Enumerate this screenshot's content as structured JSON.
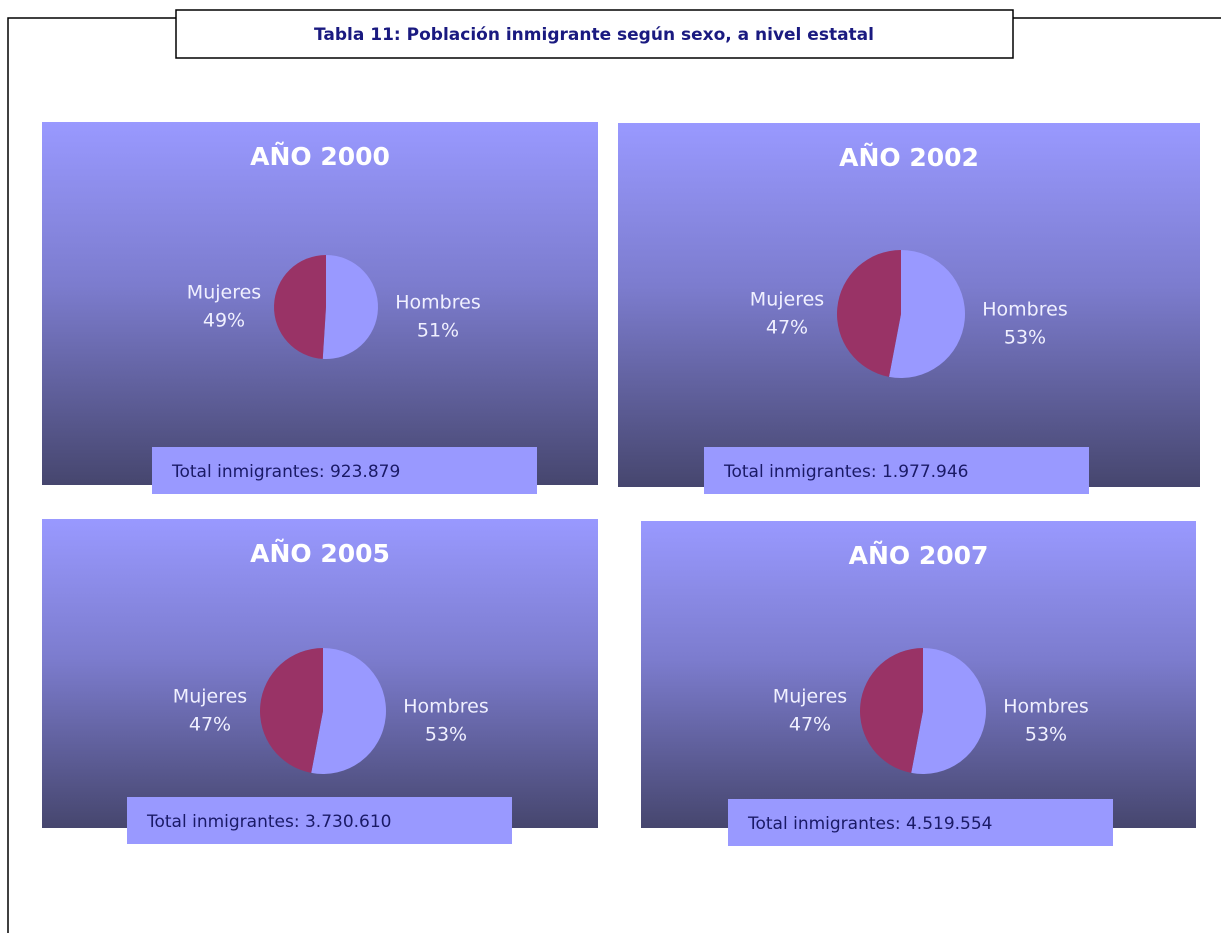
{
  "title": "Tabla 11: Población inmigrante según sexo, a nivel estatal",
  "chart_data": [
    {
      "type": "pie",
      "title": "AÑO 2000",
      "categories": [
        "Hombres",
        "Mujeres"
      ],
      "values": [
        51,
        49
      ],
      "value_labels": [
        "51%",
        "49%"
      ],
      "colors": [
        "#9999ff",
        "#993366"
      ],
      "annotation": "Total inmigrantes: 923.879"
    },
    {
      "type": "pie",
      "title": "AÑO 2002",
      "categories": [
        "Hombres",
        "Mujeres"
      ],
      "values": [
        53,
        47
      ],
      "value_labels": [
        "53%",
        "47%"
      ],
      "colors": [
        "#9999ff",
        "#993366"
      ],
      "annotation": "Total inmigrantes: 1.977.946"
    },
    {
      "type": "pie",
      "title": "AÑO 2005",
      "categories": [
        "Hombres",
        "Mujeres"
      ],
      "values": [
        53,
        47
      ],
      "value_labels": [
        "53%",
        "47%"
      ],
      "colors": [
        "#9999ff",
        "#993366"
      ],
      "annotation": "Total inmigrantes: 3.730.610"
    },
    {
      "type": "pie",
      "title": "AÑO 2007",
      "categories": [
        "Hombres",
        "Mujeres"
      ],
      "values": [
        53,
        47
      ],
      "value_labels": [
        "53%",
        "47%"
      ],
      "colors": [
        "#9999ff",
        "#993366"
      ],
      "annotation": "Total inmigrantes: 4.519.554"
    }
  ]
}
